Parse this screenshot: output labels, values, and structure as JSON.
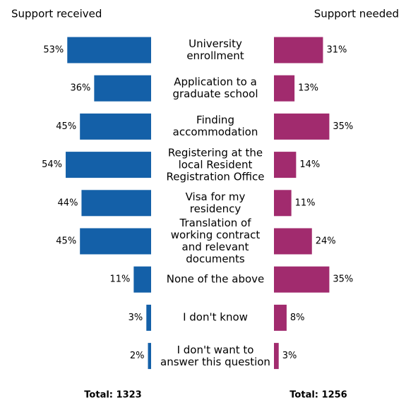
{
  "chart_data": {
    "type": "butterfly",
    "categories": [
      "University enrollment",
      "Application to a graduate school",
      "Finding accommodation",
      "Registering at the local Resident Registration Office",
      "Visa for my residency",
      "Translation of working contract and relevant documents",
      "None of the above",
      "I don't know",
      "I don't want to answer this question"
    ],
    "series": [
      {
        "name": "Support received",
        "color": "#1460a8",
        "side": "left",
        "values": [
          53,
          36,
          45,
          54,
          44,
          45,
          11,
          3,
          2
        ],
        "value_labels": [
          "53%",
          "36%",
          "45%",
          "54%",
          "44%",
          "45%",
          "11%",
          "3%",
          "2%"
        ],
        "total_label": "Total: 1323"
      },
      {
        "name": "Support needed",
        "color": "#a12b6e",
        "side": "right",
        "values": [
          31,
          13,
          35,
          14,
          11,
          24,
          35,
          8,
          3
        ],
        "value_labels": [
          "31%",
          "13%",
          "35%",
          "14%",
          "11%",
          "24%",
          "35%",
          "8%",
          "3%"
        ],
        "total_label": "Total: 1256"
      }
    ]
  }
}
